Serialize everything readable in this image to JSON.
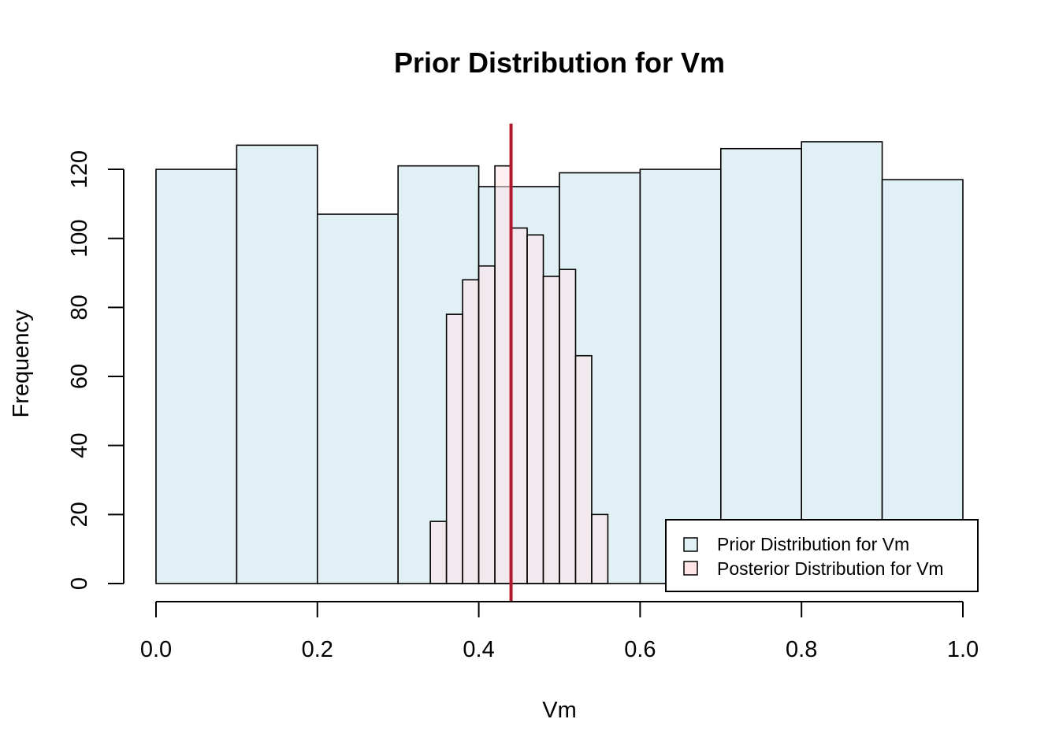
{
  "chart_data": {
    "type": "histogram",
    "title": "Prior Distribution for Vm",
    "xlabel": "Vm",
    "ylabel": "Frequency",
    "xlim": [
      0,
      1
    ],
    "ylim": [
      0,
      128
    ],
    "x_ticks": [
      "0.0",
      "0.2",
      "0.4",
      "0.6",
      "0.8",
      "1.0"
    ],
    "y_ticks": [
      "0",
      "20",
      "40",
      "60",
      "80",
      "100",
      "120"
    ],
    "grid": false,
    "legend_position": "bottom-right",
    "series": [
      {
        "name": "Prior Distribution for Vm",
        "color": "#e0f0f5",
        "bins": [
          {
            "x0": 0.0,
            "x1": 0.1,
            "count": 120
          },
          {
            "x0": 0.1,
            "x1": 0.2,
            "count": 127
          },
          {
            "x0": 0.2,
            "x1": 0.3,
            "count": 107
          },
          {
            "x0": 0.3,
            "x1": 0.4,
            "count": 121
          },
          {
            "x0": 0.4,
            "x1": 0.5,
            "count": 115
          },
          {
            "x0": 0.5,
            "x1": 0.6,
            "count": 119
          },
          {
            "x0": 0.6,
            "x1": 0.7,
            "count": 120
          },
          {
            "x0": 0.7,
            "x1": 0.8,
            "count": 126
          },
          {
            "x0": 0.8,
            "x1": 0.9,
            "count": 128
          },
          {
            "x0": 0.9,
            "x1": 1.0,
            "count": 117
          }
        ]
      },
      {
        "name": "Posterior Distribution for Vm",
        "color": "#ffe4e8",
        "bins": [
          {
            "x0": 0.34,
            "x1": 0.36,
            "count": 18
          },
          {
            "x0": 0.36,
            "x1": 0.38,
            "count": 78
          },
          {
            "x0": 0.38,
            "x1": 0.4,
            "count": 88
          },
          {
            "x0": 0.4,
            "x1": 0.42,
            "count": 92
          },
          {
            "x0": 0.42,
            "x1": 0.44,
            "count": 121
          },
          {
            "x0": 0.44,
            "x1": 0.46,
            "count": 103
          },
          {
            "x0": 0.46,
            "x1": 0.48,
            "count": 101
          },
          {
            "x0": 0.48,
            "x1": 0.5,
            "count": 89
          },
          {
            "x0": 0.5,
            "x1": 0.52,
            "count": 91
          },
          {
            "x0": 0.52,
            "x1": 0.54,
            "count": 66
          },
          {
            "x0": 0.54,
            "x1": 0.56,
            "count": 20
          }
        ]
      }
    ],
    "reference_line": {
      "x": 0.44,
      "color": "#b2182b"
    }
  }
}
